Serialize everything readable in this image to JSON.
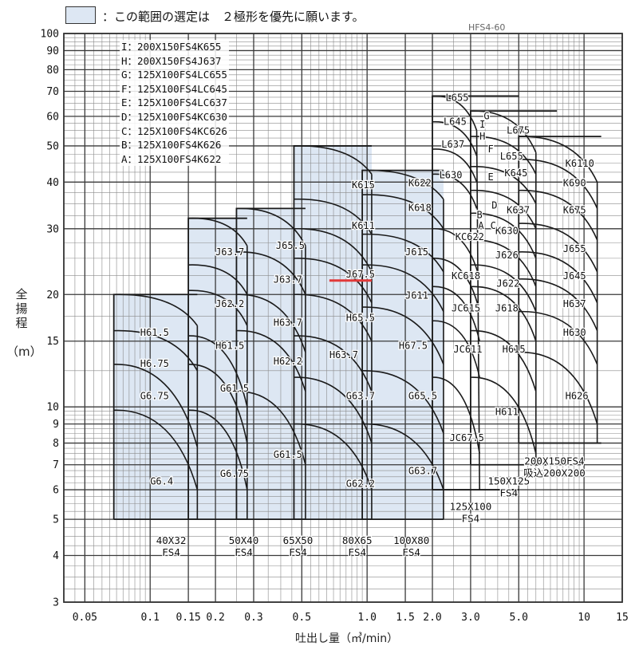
{
  "legend": {
    "text": "：この範囲の選定は　２極形を優先に願います。",
    "fill": "#dde7f3"
  },
  "ref_code": "HFS4-60",
  "model_list": [
    "I：200X150FS4K655",
    "H：200X150FS4J637",
    "G：125X100FS4LC655",
    "F：125X100FS4LC645",
    "E：125X100FS4LC637",
    "D：125X100FS4KC630",
    "C：125X100FS4KC626",
    "B：125X100FS4K626",
    "A：125X100FS4K622"
  ],
  "chart_data": {
    "type": "area",
    "xlabel": "吐出し量（㎥/min）",
    "ylabel": "全揚程",
    "ylabel_unit": "（m）",
    "xscale": "log",
    "yscale": "log",
    "xlim": [
      0.04,
      15
    ],
    "ylim": [
      3,
      100
    ],
    "x_ticks": [
      {
        "v": 0.05,
        "label": "0.05"
      },
      {
        "v": 0.1,
        "label": "0.1"
      },
      {
        "v": 0.15,
        "label": "0.15"
      },
      {
        "v": 0.2,
        "label": "0.2"
      },
      {
        "v": 0.3,
        "label": "0.3"
      },
      {
        "v": 0.5,
        "label": "0.5"
      },
      {
        "v": 1.0,
        "label": "1.0"
      },
      {
        "v": 1.5,
        "label": "1.5"
      },
      {
        "v": 2.0,
        "label": "2.0"
      },
      {
        "v": 3.0,
        "label": "3.0"
      },
      {
        "v": 5.0,
        "label": "5.0"
      },
      {
        "v": 10,
        "label": "10"
      },
      {
        "v": 15,
        "label": "15"
      }
    ],
    "y_ticks": [
      {
        "v": 3,
        "label": "3"
      },
      {
        "v": 4,
        "label": "4"
      },
      {
        "v": 5,
        "label": "5"
      },
      {
        "v": 6,
        "label": "6"
      },
      {
        "v": 7,
        "label": "7"
      },
      {
        "v": 8,
        "label": "8"
      },
      {
        "v": 9,
        "label": "9"
      },
      {
        "v": 10,
        "label": "10"
      },
      {
        "v": 15,
        "label": "15"
      },
      {
        "v": 20,
        "label": "20"
      },
      {
        "v": 30,
        "label": "30"
      },
      {
        "v": 40,
        "label": "40"
      },
      {
        "v": 50,
        "label": "50"
      },
      {
        "v": 60,
        "label": "60"
      },
      {
        "v": 70,
        "label": "70"
      },
      {
        "v": 80,
        "label": "80"
      },
      {
        "v": 90,
        "label": "90"
      },
      {
        "v": 100,
        "label": "100"
      }
    ],
    "regions": [
      {
        "name": "40X32\nFS4",
        "label_at": [
          0.125,
          4.3
        ],
        "q_min": 0.068,
        "q_max": 0.165,
        "h_top": 20,
        "h_bottom": 5,
        "shaded": true,
        "curves": [
          {
            "label": "H61.5",
            "h0": 20,
            "q_end": 0.165,
            "h_end": 16.5,
            "label_at": [
              0.09,
              15.5
            ]
          },
          {
            "label": "H6.75",
            "h0": 16,
            "q_end": 0.165,
            "h_end": 12.5,
            "label_at": [
              0.09,
              12.8
            ]
          },
          {
            "label": "G6.75",
            "h0": 13,
            "q_end": 0.165,
            "h_end": 7.8,
            "label_at": [
              0.09,
              10.5
            ]
          },
          {
            "label": "G6.4",
            "h0": 9.8,
            "q_end": 0.165,
            "h_end": 6.0,
            "label_at": [
              0.1,
              6.2
            ]
          }
        ]
      },
      {
        "name": "50X40\nFS4",
        "label_at": [
          0.27,
          4.3
        ],
        "q_min": 0.15,
        "q_max": 0.28,
        "h_top": 32,
        "h_bottom": 5,
        "shaded": true,
        "curves": [
          {
            "label": "J63.7",
            "h0": 32,
            "q_end": 0.28,
            "h_end": 27,
            "label_at": [
              0.2,
              25.5
            ]
          },
          {
            "label": "",
            "h0": 24,
            "q_end": 0.28,
            "h_end": 20,
            "label_at": null
          },
          {
            "label": "J62.2",
            "h0": 20.5,
            "q_end": 0.28,
            "h_end": 16.5,
            "label_at": [
              0.2,
              18.5
            ]
          },
          {
            "label": "H61.5",
            "h0": 15.5,
            "q_end": 0.28,
            "h_end": 10,
            "label_at": [
              0.2,
              14.3
            ]
          },
          {
            "label": "G61.5",
            "h0": 13,
            "q_end": 0.28,
            "h_end": 8,
            "label_at": [
              0.21,
              11
            ]
          },
          {
            "label": "G6.75",
            "h0": 9.8,
            "q_end": 0.28,
            "h_end": 6.0,
            "label_at": [
              0.21,
              6.5
            ]
          }
        ]
      },
      {
        "name": "65X50\nFS4",
        "label_at": [
          0.48,
          4.3
        ],
        "q_min": 0.25,
        "q_max": 0.52,
        "h_top": 34,
        "h_bottom": 5,
        "shaded": true,
        "curves": [
          {
            "label": "J65.5",
            "h0": 34,
            "q_end": 0.52,
            "h_end": 27,
            "label_at": [
              0.38,
              26.5
            ]
          },
          {
            "label": "J63.7",
            "h0": 26,
            "q_end": 0.52,
            "h_end": 20,
            "label_at": [
              0.37,
              21.5
            ]
          },
          {
            "label": "H63.7",
            "h0": 20,
            "q_end": 0.52,
            "h_end": 14,
            "label_at": [
              0.37,
              16.5
            ]
          },
          {
            "label": "H62.2",
            "h0": 16,
            "q_end": 0.52,
            "h_end": 11,
            "label_at": [
              0.37,
              13
            ]
          },
          {
            "label": "G61.5",
            "h0": 11,
            "q_end": 0.52,
            "h_end": 7,
            "label_at": [
              0.37,
              7.3
            ]
          }
        ]
      },
      {
        "name": "80X65\nFS4",
        "label_at": [
          0.9,
          4.3
        ],
        "q_min": 0.46,
        "q_max": 1.05,
        "h_top": 50,
        "h_bottom": 5,
        "shaded": true,
        "curves": [
          {
            "label": "K615",
            "h0": 50,
            "q_end": 1.05,
            "h_end": 42,
            "label_at": [
              0.85,
              38.5
            ]
          },
          {
            "label": "K611",
            "h0": 36,
            "q_end": 1.05,
            "h_end": 29,
            "label_at": [
              0.85,
              30
            ]
          },
          {
            "label": "",
            "h0": 30,
            "q_end": 1.05,
            "h_end": 23,
            "label_at": null
          },
          {
            "label": "J67.5",
            "h0": 25,
            "q_end": 1.05,
            "h_end": 19,
            "label_at": [
              0.8,
              22.2
            ]
          },
          {
            "label": "H65.5",
            "h0": 20,
            "q_end": 1.05,
            "h_end": 15,
            "label_at": [
              0.8,
              17
            ]
          },
          {
            "label": "H63.7",
            "h0": 15.5,
            "q_end": 1.05,
            "h_end": 11,
            "label_at": [
              0.67,
              13.5
            ]
          },
          {
            "label": "G63.7",
            "h0": 12,
            "q_end": 1.05,
            "h_end": 8,
            "label_at": [
              0.8,
              10.5
            ]
          },
          {
            "label": "G62.2",
            "h0": 9,
            "q_end": 1.05,
            "h_end": 6,
            "label_at": [
              0.8,
              6.1
            ]
          }
        ]
      },
      {
        "name": "100X80\nFS4",
        "label_at": [
          1.6,
          4.3
        ],
        "q_min": 0.95,
        "q_max": 2.25,
        "h_top": 43,
        "h_bottom": 5,
        "shaded": true,
        "curves": [
          {
            "label": "K622",
            "h0": 43,
            "q_end": 2.25,
            "h_end": 36,
            "label_at": [
              1.55,
              39
            ]
          },
          {
            "label": "K618",
            "h0": 37,
            "q_end": 2.25,
            "h_end": 30,
            "label_at": [
              1.55,
              33.5
            ]
          },
          {
            "label": "J615",
            "h0": 29,
            "q_end": 2.25,
            "h_end": 23,
            "label_at": [
              1.5,
              25.5
            ]
          },
          {
            "label": "J611",
            "h0": 24,
            "q_end": 2.25,
            "h_end": 18,
            "label_at": [
              1.5,
              19.5
            ]
          },
          {
            "label": "H67.5",
            "h0": 18.5,
            "q_end": 2.25,
            "h_end": 13,
            "label_at": [
              1.4,
              14.3
            ]
          },
          {
            "label": "G65.5",
            "h0": 12.5,
            "q_end": 2.25,
            "h_end": 8.5,
            "label_at": [
              1.55,
              10.5
            ]
          },
          {
            "label": "G63.7",
            "h0": 9,
            "q_end": 2.25,
            "h_end": 6,
            "label_at": [
              1.55,
              6.6
            ]
          }
        ]
      },
      {
        "name": "125X100\nFS4",
        "label_at": [
          3.0,
          5.3
        ],
        "q_min": 2.0,
        "q_max": 5.0,
        "h_top": 68,
        "h_bottom": 6,
        "shaded": false,
        "curves": [
          {
            "label": "L655",
            "h0": 68,
            "q_end": 3.2,
            "h_end": 55,
            "label_at": [
              2.3,
              66
            ]
          },
          {
            "label": "L645",
            "h0": 58,
            "q_end": 3.2,
            "h_end": 47,
            "label_at": [
              2.25,
              57
            ]
          },
          {
            "label": "L637",
            "h0": 49,
            "q_end": 3.2,
            "h_end": 40,
            "label_at": [
              2.2,
              49.5
            ]
          },
          {
            "label": "L630",
            "h0": 42,
            "q_end": 3.2,
            "h_end": 34,
            "label_at": [
              2.15,
              41
            ]
          },
          {
            "label": "KC622",
            "h0": 30,
            "q_end": 3.3,
            "h_end": 22,
            "label_at": [
              2.55,
              28
            ]
          },
          {
            "label": "KC618",
            "h0": 25,
            "q_end": 3.3,
            "h_end": 18,
            "label_at": [
              2.45,
              22
            ]
          },
          {
            "label": "JC615",
            "h0": 21,
            "q_end": 3.3,
            "h_end": 15,
            "label_at": [
              2.45,
              18
            ]
          },
          {
            "label": "JC611",
            "h0": 17,
            "q_end": 3.3,
            "h_end": 12,
            "label_at": [
              2.5,
              14
            ]
          },
          {
            "label": "JC67.5",
            "h0": 12,
            "q_end": 3.3,
            "h_end": 7.5,
            "label_at": [
              2.4,
              8.1
            ]
          }
        ]
      },
      {
        "name": "150X125\nFS4",
        "label_at": [
          4.5,
          6.2
        ],
        "q_min": 3.0,
        "q_max": 7.5,
        "h_top": 62,
        "h_bottom": 7,
        "shaded": false,
        "curves": [
          {
            "label": "L675",
            "h0": 62,
            "q_end": 6.0,
            "h_end": 48,
            "label_at": [
              4.4,
              54
            ]
          },
          {
            "label": "L655",
            "h0": 53,
            "q_end": 6.0,
            "h_end": 42,
            "label_at": [
              4.1,
              46
            ]
          },
          {
            "label": "K645",
            "h0": 44,
            "q_end": 6.0,
            "h_end": 35,
            "label_at": [
              4.3,
              41.5
            ]
          },
          {
            "label": "K637",
            "h0": 38,
            "q_end": 6.0,
            "h_end": 30,
            "label_at": [
              4.4,
              33
            ]
          },
          {
            "label": "K630",
            "h0": 33,
            "q_end": 6.0,
            "h_end": 25,
            "label_at": [
              3.9,
              29
            ]
          },
          {
            "label": "J626",
            "h0": 28,
            "q_end": 6.0,
            "h_end": 21,
            "label_at": [
              3.9,
              25
            ]
          },
          {
            "label": "J622",
            "h0": 24,
            "q_end": 6.0,
            "h_end": 18,
            "label_at": [
              3.95,
              21
            ]
          },
          {
            "label": "J618",
            "h0": 21,
            "q_end": 6.0,
            "h_end": 15,
            "label_at": [
              3.9,
              18
            ]
          },
          {
            "label": "H615",
            "h0": 16,
            "q_end": 6.0,
            "h_end": 11,
            "label_at": [
              4.2,
              14
            ]
          },
          {
            "label": "H611",
            "h0": 12,
            "q_end": 6.0,
            "h_end": 7.5,
            "label_at": [
              3.9,
              9.5
            ]
          }
        ]
      },
      {
        "name": "200X150FS4\n吸込200X200",
        "label_at": [
          7.3,
          7.0
        ],
        "q_min": 5.0,
        "q_max": 12,
        "h_top": 53,
        "h_bottom": 8,
        "shaded": false,
        "curves": [
          {
            "label": "K6110",
            "h0": 53,
            "q_end": 11.5,
            "h_end": 40,
            "label_at": [
              8.2,
              44
            ]
          },
          {
            "label": "K690",
            "h0": 46,
            "q_end": 11.5,
            "h_end": 34,
            "label_at": [
              8.0,
              39
            ]
          },
          {
            "label": "K675",
            "h0": 38,
            "q_end": 11.5,
            "h_end": 28,
            "label_at": [
              8.0,
              33
            ]
          },
          {
            "label": "J655",
            "h0": 31,
            "q_end": 11.5,
            "h_end": 23,
            "label_at": [
              8.0,
              26
            ]
          },
          {
            "label": "J645",
            "h0": 26,
            "q_end": 11.5,
            "h_end": 19,
            "label_at": [
              8.0,
              22
            ]
          },
          {
            "label": "H637",
            "h0": 22,
            "q_end": 11.5,
            "h_end": 16,
            "label_at": [
              8.0,
              18.5
            ]
          },
          {
            "label": "H630",
            "h0": 18,
            "q_end": 11.5,
            "h_end": 13,
            "label_at": [
              8.0,
              15.5
            ]
          },
          {
            "label": "H626",
            "h0": 14,
            "q_end": 11.5,
            "h_end": 9,
            "label_at": [
              8.2,
              10.5
            ]
          }
        ]
      }
    ],
    "letter_markers": [
      {
        "label": "I",
        "at": [
          3.3,
          56
        ]
      },
      {
        "label": "H",
        "at": [
          3.3,
          52
        ]
      },
      {
        "label": "G",
        "at": [
          3.45,
          59
        ]
      },
      {
        "label": "F",
        "at": [
          3.6,
          48
        ]
      },
      {
        "label": "E",
        "at": [
          3.6,
          40.5
        ]
      },
      {
        "label": "D",
        "at": [
          3.75,
          34
        ]
      },
      {
        "label": "C",
        "at": [
          3.7,
          30
        ]
      },
      {
        "label": "B",
        "at": [
          3.2,
          32
        ]
      },
      {
        "label": "A",
        "at": [
          3.25,
          30
        ]
      }
    ],
    "highlight": {
      "q_from": 0.67,
      "q_to": 1.05,
      "h": 21.8,
      "color": "#e23a3a"
    }
  },
  "colors": {
    "grid_major": "#3a3a3a",
    "grid_minor": "#8a8a8a",
    "shade": "#dde7f3",
    "curve": "#1a1a1a",
    "border": "#333333"
  }
}
